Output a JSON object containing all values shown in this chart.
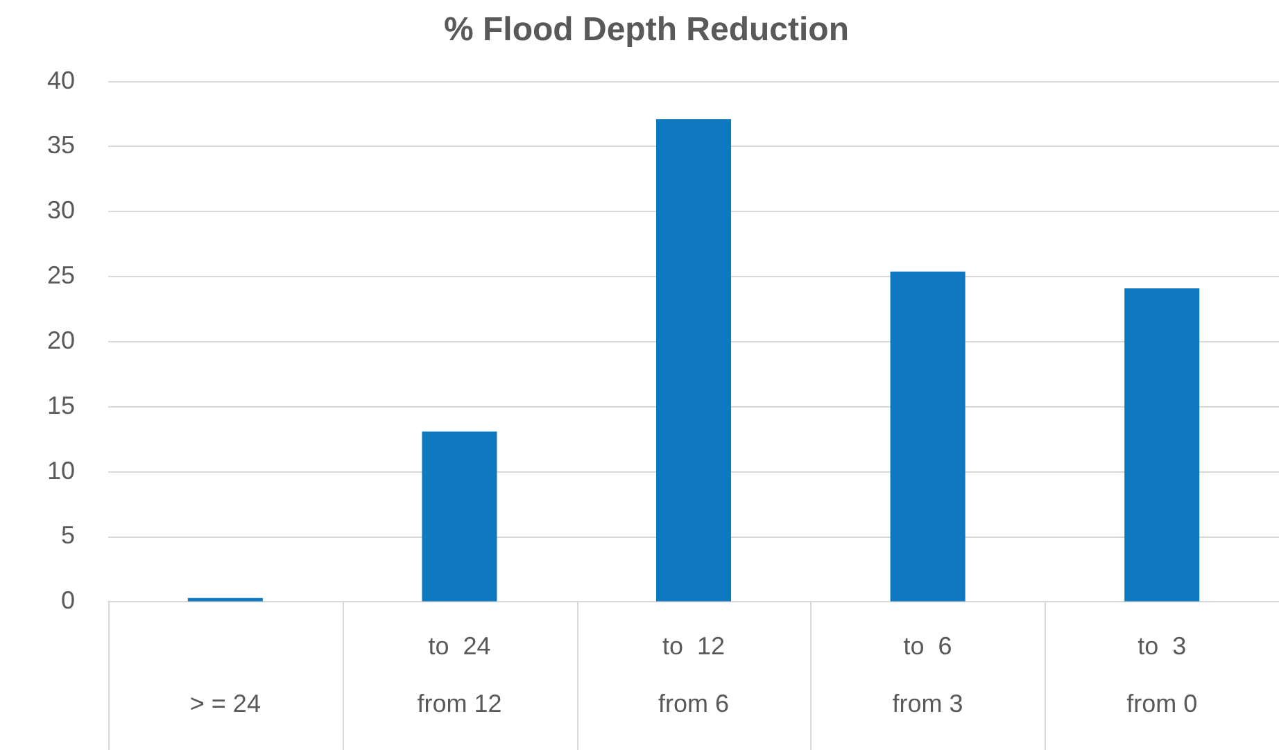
{
  "chart_data": {
    "type": "bar",
    "title": "% Flood Depth Reduction",
    "categories": [
      "> = 24",
      "to  24\nfrom 12",
      "to  12\nfrom 6",
      "to  6\nfrom 3",
      "to  3\nfrom 0"
    ],
    "values": [
      0.3,
      13.1,
      37.1,
      25.4,
      24.1
    ],
    "color": "#0e78c1",
    "ylim": [
      0,
      40
    ],
    "yticks": [
      0,
      5,
      10,
      15,
      20,
      25,
      30,
      35,
      40
    ],
    "grid": "y"
  }
}
